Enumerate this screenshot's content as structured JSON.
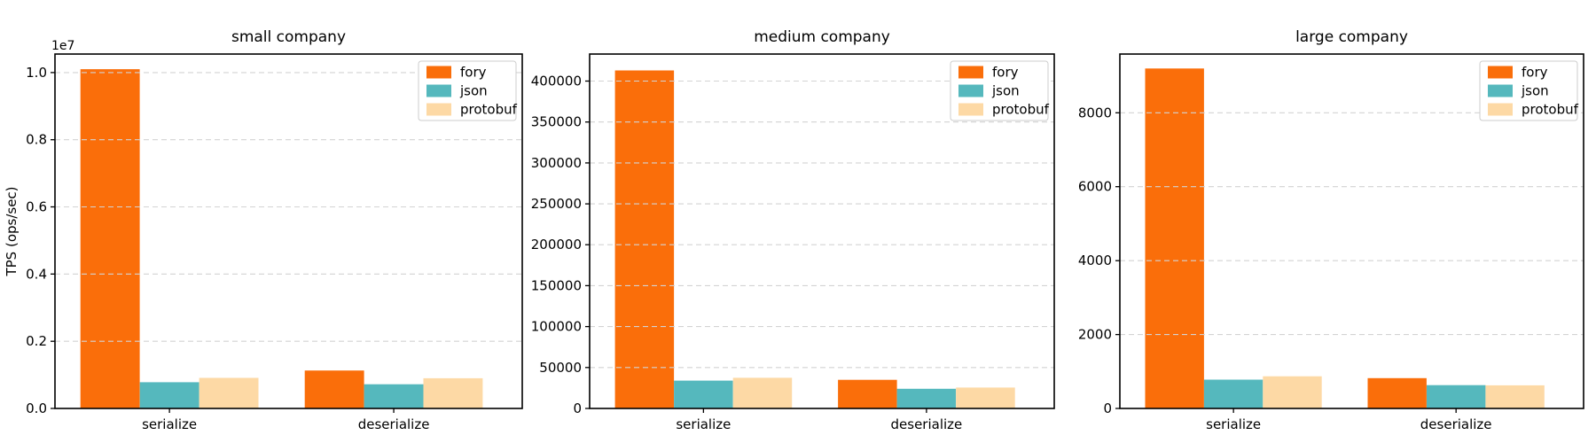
{
  "figure": {
    "background": "#ffffff",
    "ylabel": "TPS (ops/sec)"
  },
  "colors": {
    "fory": "#fa6e0a",
    "json": "#55b8bd",
    "protobuf": "#fdd9a5",
    "grid": "#d3d3d3",
    "spine": "#000000",
    "legend_border": "#cccccc",
    "legend_background": "#ffffff"
  },
  "legend": {
    "entries": [
      "fory",
      "json",
      "protobuf"
    ],
    "position": "upper right"
  },
  "chart_data": [
    {
      "type": "bar",
      "title": "small company",
      "categories": [
        "serialize",
        "deserialize"
      ],
      "series": [
        {
          "name": "fory",
          "values": [
            10100000,
            1130000
          ]
        },
        {
          "name": "json",
          "values": [
            780000,
            720000
          ]
        },
        {
          "name": "protobuf",
          "values": [
            910000,
            900000
          ]
        }
      ],
      "xlabel": "",
      "ylabel": "TPS (ops/sec)",
      "ylim": [
        0,
        10550000
      ],
      "yticks": [
        0,
        2000000,
        4000000,
        6000000,
        8000000,
        10000000
      ],
      "ytick_labels": [
        "0.0",
        "0.2",
        "0.4",
        "0.6",
        "0.8",
        "1.0"
      ],
      "offset_label": "1e7",
      "grid": "horizontal-dashed",
      "legend_position": "upper right"
    },
    {
      "type": "bar",
      "title": "medium company",
      "categories": [
        "serialize",
        "deserialize"
      ],
      "series": [
        {
          "name": "fory",
          "values": [
            413000,
            35000
          ]
        },
        {
          "name": "json",
          "values": [
            34000,
            24000
          ]
        },
        {
          "name": "protobuf",
          "values": [
            37500,
            25500
          ]
        }
      ],
      "xlabel": "",
      "ylabel": "",
      "ylim": [
        0,
        433000
      ],
      "yticks": [
        0,
        50000,
        100000,
        150000,
        200000,
        250000,
        300000,
        350000,
        400000
      ],
      "ytick_labels": [
        "0",
        "50000",
        "100000",
        "150000",
        "200000",
        "250000",
        "300000",
        "350000",
        "400000"
      ],
      "offset_label": "",
      "grid": "horizontal-dashed",
      "legend_position": "upper right"
    },
    {
      "type": "bar",
      "title": "large company",
      "categories": [
        "serialize",
        "deserialize"
      ],
      "series": [
        {
          "name": "fory",
          "values": [
            9200,
            820
          ]
        },
        {
          "name": "json",
          "values": [
            780,
            630
          ]
        },
        {
          "name": "protobuf",
          "values": [
            870,
            625
          ]
        }
      ],
      "xlabel": "",
      "ylabel": "",
      "ylim": [
        0,
        9590
      ],
      "yticks": [
        0,
        2000,
        4000,
        6000,
        8000
      ],
      "ytick_labels": [
        "0",
        "2000",
        "4000",
        "6000",
        "8000"
      ],
      "offset_label": "",
      "grid": "horizontal-dashed",
      "legend_position": "upper right"
    }
  ]
}
